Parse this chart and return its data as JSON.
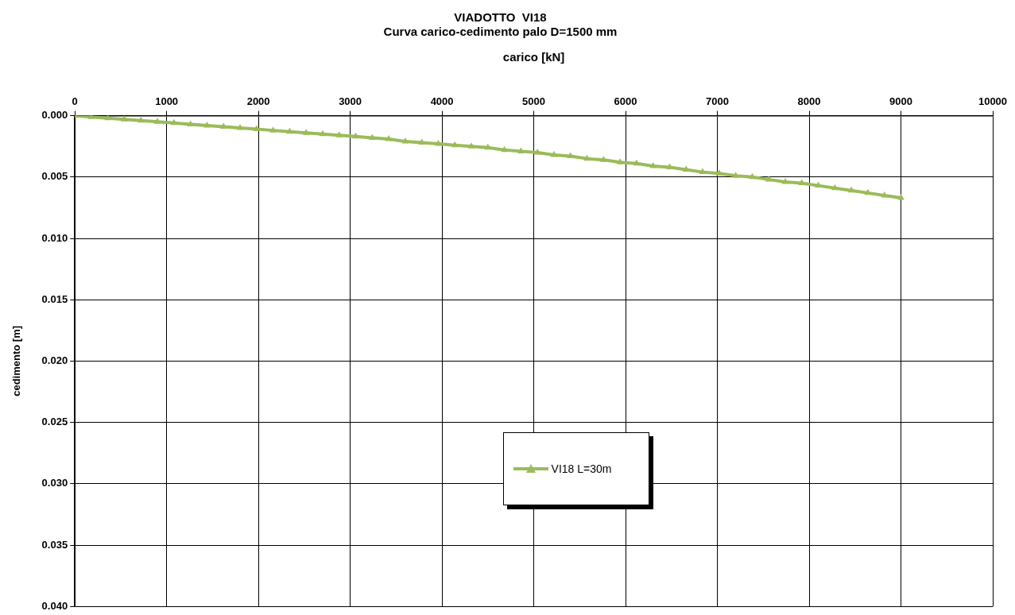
{
  "chart_data": {
    "type": "line",
    "title": "VIADOTTO  VI18",
    "subtitle": "Curva carico-cedimento palo D=1500 mm",
    "xlabel": "carico [kN]",
    "ylabel": "cedimento [m]",
    "x": [
      0,
      180,
      360,
      540,
      720,
      900,
      1080,
      1260,
      1440,
      1620,
      1800,
      1980,
      2160,
      2340,
      2520,
      2700,
      2880,
      3060,
      3240,
      3420,
      3600,
      3780,
      3960,
      4140,
      4320,
      4500,
      4680,
      4860,
      5040,
      5220,
      5400,
      5580,
      5760,
      5940,
      6120,
      6300,
      6480,
      6660,
      6840,
      7020,
      7200,
      7380,
      7560,
      7740,
      7920,
      8100,
      8280,
      8460,
      8640,
      8820,
      9000
    ],
    "series": [
      {
        "name": "VI18 L=30m",
        "color": "#9bbb59",
        "values": [
          0,
          0.0001,
          0.0002,
          0.0003,
          0.0004,
          0.0005,
          0.0006,
          0.0007,
          0.0008,
          0.0009,
          0.001,
          0.0011,
          0.0012,
          0.0013,
          0.0014,
          0.0015,
          0.0016,
          0.0017,
          0.0018,
          0.0019,
          0.0021,
          0.0022,
          0.0023,
          0.0024,
          0.0025,
          0.0026,
          0.0028,
          0.0029,
          0.003,
          0.0032,
          0.0033,
          0.0035,
          0.0036,
          0.0038,
          0.0039,
          0.0041,
          0.0042,
          0.0044,
          0.0046,
          0.0047,
          0.0049,
          0.005,
          0.0052,
          0.0054,
          0.0055,
          0.0057,
          0.0059,
          0.0061,
          0.0063,
          0.0065,
          0.0067
        ]
      }
    ],
    "xlim": [
      0,
      10000
    ],
    "xticks": [
      0,
      1000,
      2000,
      3000,
      4000,
      5000,
      6000,
      7000,
      8000,
      9000,
      10000
    ],
    "ylim": [
      0.04,
      0
    ],
    "yticks": [
      {
        "value": 0,
        "label": "0.000"
      },
      {
        "value": 0.005,
        "label": "0.005"
      },
      {
        "value": 0.01,
        "label": "0.010"
      },
      {
        "value": 0.015,
        "label": "0.015"
      },
      {
        "value": 0.02,
        "label": "0.020"
      },
      {
        "value": 0.025,
        "label": "0.025"
      },
      {
        "value": 0.03,
        "label": "0.030"
      },
      {
        "value": 0.035,
        "label": "0.035"
      },
      {
        "value": 0.04,
        "label": "0.040"
      }
    ],
    "grid": true,
    "legend": "center",
    "marker": "triangle",
    "line_style": "solid"
  }
}
